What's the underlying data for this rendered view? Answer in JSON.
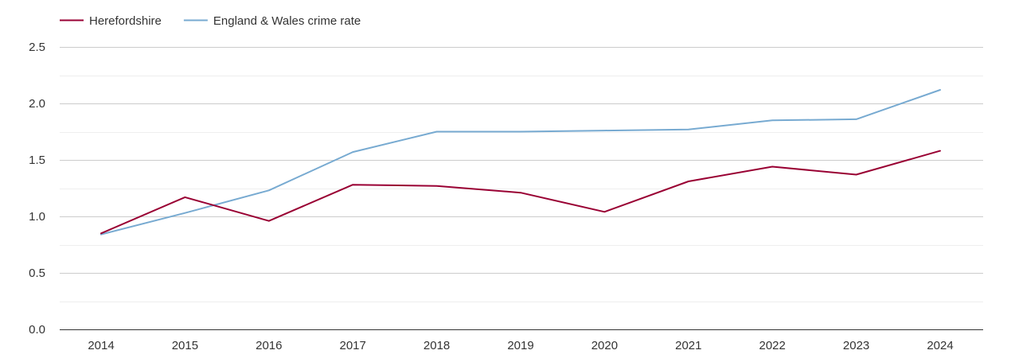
{
  "chart_data": {
    "type": "line",
    "title": "",
    "xlabel": "",
    "ylabel": "",
    "categories": [
      "2014",
      "2015",
      "2016",
      "2017",
      "2018",
      "2019",
      "2020",
      "2021",
      "2022",
      "2023",
      "2024"
    ],
    "series": [
      {
        "name": "Herefordshire",
        "color": "#990033",
        "values": [
          0.85,
          1.17,
          0.96,
          1.28,
          1.27,
          1.21,
          1.04,
          1.31,
          1.44,
          1.37,
          1.58
        ]
      },
      {
        "name": "England & Wales crime rate",
        "color": "#77aad1",
        "values": [
          0.84,
          1.03,
          1.23,
          1.57,
          1.75,
          1.75,
          1.76,
          1.77,
          1.85,
          1.86,
          2.12
        ]
      }
    ],
    "ylim": [
      0,
      2.5
    ],
    "yticks": [
      "0.0",
      "0.5",
      "1.0",
      "1.5",
      "2.0",
      "2.5"
    ],
    "ytick_values": [
      0,
      0.5,
      1.0,
      1.5,
      2.0,
      2.5
    ],
    "grid": true,
    "legend_position": "top-left",
    "colors": {
      "major_grid": "#cccccc",
      "minor_grid": "#eeeeee",
      "axis": "#333333",
      "text": "#333333"
    }
  }
}
